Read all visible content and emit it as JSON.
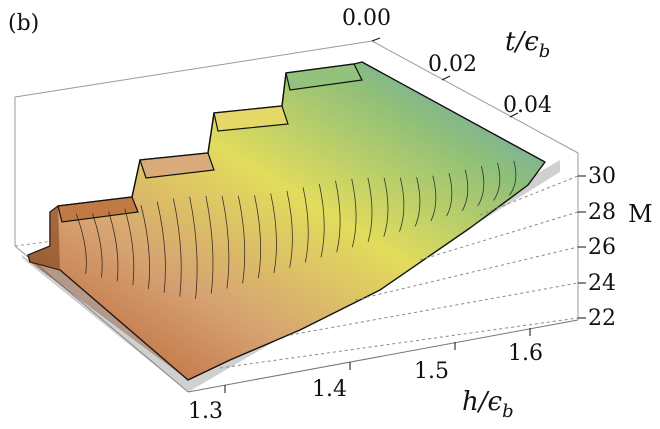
{
  "chart_data": {
    "type": "surface3d",
    "panel_label": "(b)",
    "x_axis": {
      "label_main": "h/",
      "label_eps": "ϵ",
      "label_sub": "b",
      "ticks": [
        "1.3",
        "1.4",
        "1.5",
        "1.6"
      ],
      "range": [
        1.27,
        1.65
      ]
    },
    "t_axis": {
      "label_main": "t/",
      "label_eps": "ϵ",
      "label_sub": "b",
      "ticks": [
        "0.00",
        "0.02",
        "0.04"
      ],
      "range": [
        0.0,
        0.055
      ]
    },
    "z_axis": {
      "label": "M",
      "ticks": [
        "22",
        "24",
        "26",
        "28",
        "30"
      ],
      "range": [
        22,
        31
      ]
    },
    "plateaus_at_zero_t": [
      {
        "h_start": 1.27,
        "h_end": 1.33,
        "M": 28
      },
      {
        "h_start": 1.33,
        "h_end": 1.43,
        "M": 29
      },
      {
        "h_start": 1.43,
        "h_end": 1.52,
        "M": 30
      },
      {
        "h_start": 1.52,
        "h_end": 1.62,
        "M": 31
      }
    ],
    "contour_levels": 28,
    "colormap": [
      "#b5562a",
      "#d3a06e",
      "#e3dc5e",
      "#8dbf76",
      "#5f9ac8"
    ]
  }
}
